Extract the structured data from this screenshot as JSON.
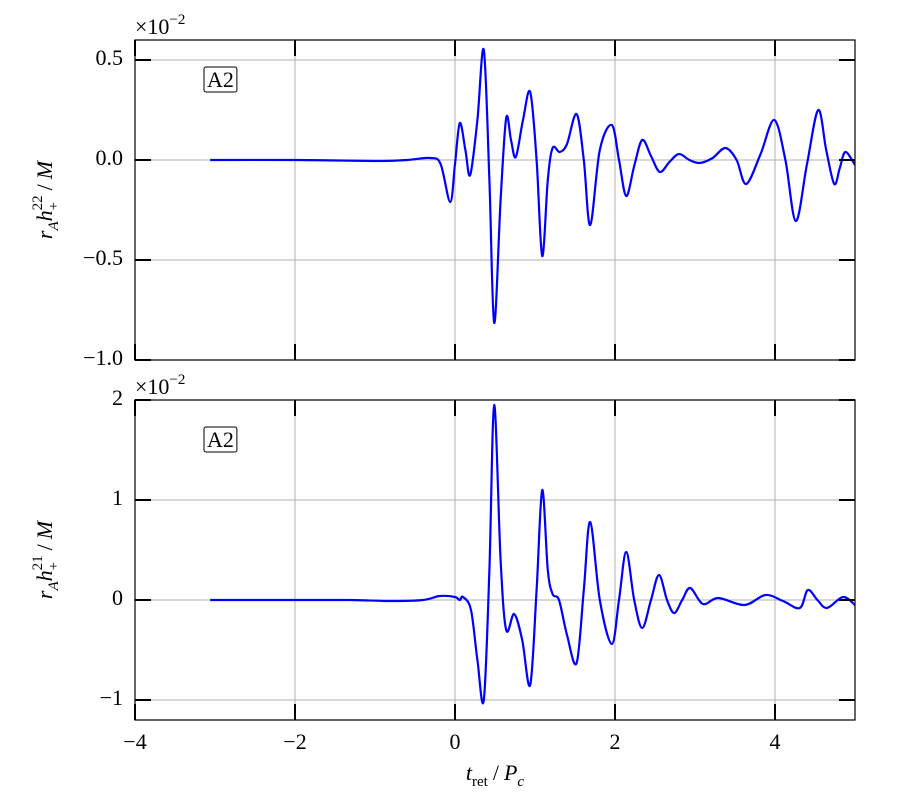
{
  "chart_data": [
    {
      "type": "line",
      "offset_text": [
        "×10",
        "−2"
      ],
      "ylabel": [
        "r",
        "A",
        "h",
        "+",
        "22",
        "/",
        "M"
      ],
      "annotation": "A2",
      "color": "#0000ff",
      "grid": true,
      "xlim": [
        -4,
        5
      ],
      "xticks": [
        -4,
        -2,
        0,
        2,
        4
      ],
      "ylim": [
        -1.0,
        0.6
      ],
      "yticks": [
        {
          "value": -1.0,
          "label": "−1.0"
        },
        {
          "value": -0.5,
          "label": "−0.5"
        },
        {
          "value": 0.0,
          "label": "0.0"
        },
        0.5
      ],
      "x": [
        -3.06,
        -2.0,
        -1.0,
        -0.6,
        -0.31,
        -0.18,
        -0.06,
        0.0,
        0.06,
        0.13,
        0.19,
        0.28,
        0.36,
        0.43,
        0.49,
        0.57,
        0.64,
        0.7,
        0.76,
        0.85,
        0.94,
        1.02,
        1.09,
        1.16,
        1.22,
        1.31,
        1.4,
        1.52,
        1.61,
        1.69,
        1.81,
        1.96,
        2.05,
        2.14,
        2.24,
        2.34,
        2.45,
        2.56,
        2.68,
        2.8,
        2.93,
        3.06,
        3.22,
        3.38,
        3.52,
        3.64,
        3.82,
        3.99,
        4.13,
        4.26,
        4.4,
        4.54,
        4.64,
        4.74,
        4.81,
        4.88,
        5.0
      ],
      "values": [
        0,
        0,
        -0.005,
        0.0,
        0.01,
        -0.02,
        -0.21,
        -0.02,
        0.185,
        0.05,
        -0.075,
        0.2,
        0.55,
        -0.1,
        -0.815,
        -0.2,
        0.21,
        0.1,
        0.015,
        0.2,
        0.34,
        0.0,
        -0.48,
        -0.1,
        0.06,
        0.04,
        0.08,
        0.23,
        0.0,
        -0.325,
        0.05,
        0.175,
        0.0,
        -0.18,
        -0.03,
        0.1,
        0.02,
        -0.06,
        -0.01,
        0.03,
        0.0,
        -0.015,
        0.01,
        0.06,
        0.0,
        -0.12,
        0.03,
        0.2,
        0.0,
        -0.305,
        -0.02,
        0.25,
        0.05,
        -0.12,
        -0.04,
        0.04,
        -0.025
      ]
    },
    {
      "type": "line",
      "offset_text": [
        "×10",
        "−2"
      ],
      "ylabel": [
        "r",
        "A",
        "h",
        "+",
        "21",
        "/",
        "M"
      ],
      "xlabel": [
        "t",
        "ret",
        "/",
        "P",
        "c"
      ],
      "annotation": "A2",
      "color": "#0000ff",
      "grid": true,
      "xlim": [
        -4,
        5
      ],
      "xticks": [
        {
          "value": -4,
          "label": "−4"
        },
        {
          "value": -2,
          "label": "−2"
        },
        0,
        2,
        4
      ],
      "ylim": [
        -1.2,
        2
      ],
      "yticks": [
        {
          "value": -1,
          "label": "−1"
        },
        0,
        1,
        2
      ],
      "x": [
        -3.06,
        -2.0,
        -1.3,
        -0.81,
        -0.4,
        -0.19,
        0.0,
        0.06,
        0.1,
        0.2,
        0.28,
        0.36,
        0.43,
        0.49,
        0.57,
        0.64,
        0.74,
        0.84,
        0.94,
        1.02,
        1.09,
        1.16,
        1.22,
        1.3,
        1.4,
        1.52,
        1.61,
        1.69,
        1.81,
        1.96,
        2.05,
        2.14,
        2.24,
        2.34,
        2.45,
        2.55,
        2.65,
        2.74,
        2.84,
        2.94,
        3.1,
        3.29,
        3.62,
        3.88,
        4.1,
        4.31,
        4.41,
        4.53,
        4.65,
        4.85,
        5.0
      ],
      "values": [
        0,
        0,
        0,
        -0.01,
        0.0,
        0.04,
        0.03,
        0.0,
        0.03,
        -0.1,
        -0.6,
        -1.0,
        0.3,
        1.95,
        0.4,
        -0.3,
        -0.14,
        -0.4,
        -0.85,
        0.1,
        1.1,
        0.3,
        0.06,
        0.0,
        -0.35,
        -0.63,
        0.1,
        0.78,
        0.0,
        -0.44,
        0.0,
        0.48,
        0.0,
        -0.28,
        0.0,
        0.25,
        0.0,
        -0.13,
        0.0,
        0.12,
        -0.04,
        0.02,
        -0.05,
        0.05,
        -0.01,
        -0.08,
        0.1,
        0.0,
        -0.08,
        0.03,
        -0.05
      ]
    }
  ]
}
